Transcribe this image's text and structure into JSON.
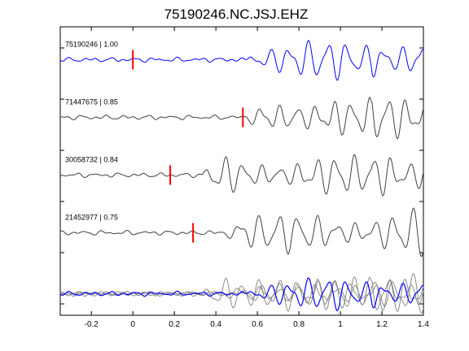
{
  "chart_data": {
    "type": "line",
    "title": "75190246.NC.JSJ.EHZ",
    "xlabel": "",
    "ylabel": "",
    "xlim": [
      -0.35,
      1.4
    ],
    "x_ticks": [
      "-0.2",
      "0",
      "0.2",
      "0.4",
      "0.6",
      "0.8",
      "1",
      "1.2",
      "1.4"
    ],
    "x_tick_values": [
      -0.2,
      0,
      0.2,
      0.4,
      0.6,
      0.8,
      1.0,
      1.2,
      1.4
    ],
    "grid": false,
    "colors": {
      "template": "#0000ff",
      "match": "#404040",
      "stack_match": "#808080",
      "pick": "#ff0000"
    },
    "series": [
      {
        "label": "75190246 | 1.00",
        "pick_time": 0.0,
        "color": "#0000ff",
        "onset": 0.53,
        "amplitude": 1.0,
        "freq": 11.0,
        "seed": 3
      },
      {
        "label": "71447675 | 0.85",
        "pick_time": 0.53,
        "color": "#404040",
        "onset": 0.53,
        "amplitude": 1.0,
        "freq": 11.5,
        "seed": 7
      },
      {
        "label": "30058732 | 0.84",
        "pick_time": 0.18,
        "color": "#404040",
        "onset": 0.33,
        "amplitude": 1.0,
        "freq": 11.2,
        "seed": 11
      },
      {
        "label": "21452977 | 0.75",
        "pick_time": 0.29,
        "color": "#404040",
        "onset": 0.42,
        "amplitude": 1.0,
        "freq": 10.8,
        "seed": 19
      }
    ]
  }
}
